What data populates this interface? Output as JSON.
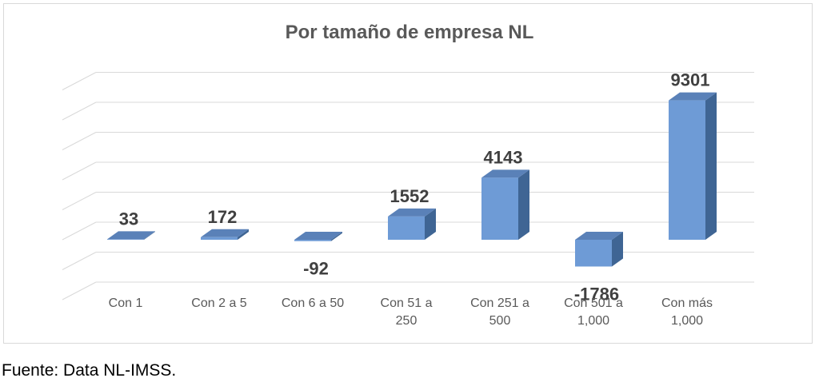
{
  "chart_data": {
    "type": "bar",
    "title": "Por tamaño de empresa NL",
    "categories": [
      [
        "Con 1"
      ],
      [
        "Con 2 a 5"
      ],
      [
        "Con 6 a 50"
      ],
      [
        "Con 51 a",
        "250"
      ],
      [
        "Con 251 a",
        "500"
      ],
      [
        "Con 501 a",
        "1,000"
      ],
      [
        "Con más",
        "1,000"
      ]
    ],
    "values": [
      33,
      172,
      -92,
      1552,
      4143,
      -1786,
      9301
    ],
    "value_labels": [
      "33",
      "172",
      "-92",
      "1552",
      "4143",
      "-1786",
      "9301"
    ],
    "ylim": [
      -4000,
      10000
    ],
    "gridline_step": 2000,
    "grid": true,
    "bar_color": "#6e9bd6",
    "bar_side_color": "#3f6594",
    "bar_top_color": "#5a81b8",
    "grid_color": "#d9d9d9"
  },
  "footer": {
    "source": "Fuente: Data NL-IMSS."
  }
}
